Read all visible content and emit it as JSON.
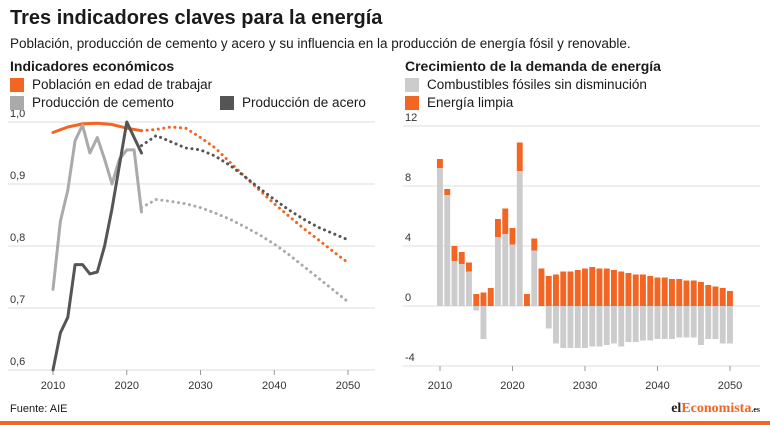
{
  "header": {
    "title": "Tres indicadores claves para la energía",
    "subtitle": "Población, producción de cemento y acero y su influencia en la producción de energía fósil y renovable."
  },
  "footer": {
    "source": "Fuente: AIE",
    "logo_prefix": "el",
    "logo_accent": "Economista",
    "logo_suffix": ".es"
  },
  "colors": {
    "population": "#f26522",
    "cement": "#aaaaaa",
    "steel": "#555555",
    "fossil": "#cccccc",
    "clean": "#f26522"
  },
  "chart_data": [
    {
      "type": "line",
      "title": "Indicadores económicos",
      "xlim": [
        2010,
        2050
      ],
      "ylim": [
        0.6,
        1.0
      ],
      "xticks": [
        2010,
        2020,
        2030,
        2040,
        2050
      ],
      "yticks": [
        0.6,
        0.7,
        0.8,
        0.9,
        1.0
      ],
      "ytick_labels": [
        "0,6",
        "0,7",
        "0,8",
        "0,9",
        "1,0"
      ],
      "grid": "horizontal",
      "legend_position": "top-left",
      "series": [
        {
          "name": "Población en edad de trabajar",
          "color": "#f26522",
          "historical": [
            [
              2010,
              0.983
            ],
            [
              2012,
              0.992
            ],
            [
              2014,
              0.997
            ],
            [
              2016,
              0.998
            ],
            [
              2018,
              0.996
            ],
            [
              2020,
              0.99
            ],
            [
              2022,
              0.986
            ]
          ],
          "projection": [
            [
              2022,
              0.986
            ],
            [
              2024,
              0.988
            ],
            [
              2026,
              0.992
            ],
            [
              2028,
              0.99
            ],
            [
              2030,
              0.975
            ],
            [
              2032,
              0.958
            ],
            [
              2034,
              0.935
            ],
            [
              2036,
              0.912
            ],
            [
              2038,
              0.89
            ],
            [
              2040,
              0.868
            ],
            [
              2042,
              0.848
            ],
            [
              2044,
              0.828
            ],
            [
              2046,
              0.81
            ],
            [
              2048,
              0.791
            ],
            [
              2050,
              0.773
            ]
          ]
        },
        {
          "name": "Producción de cemento",
          "color": "#aaaaaa",
          "historical": [
            [
              2010,
              0.73
            ],
            [
              2011,
              0.84
            ],
            [
              2012,
              0.89
            ],
            [
              2013,
              0.97
            ],
            [
              2014,
              0.995
            ],
            [
              2015,
              0.95
            ],
            [
              2016,
              0.975
            ],
            [
              2017,
              0.94
            ],
            [
              2018,
              0.9
            ],
            [
              2019,
              0.94
            ],
            [
              2020,
              0.955
            ],
            [
              2021,
              0.955
            ],
            [
              2022,
              0.855
            ]
          ],
          "projection": [
            [
              2022,
              0.862
            ],
            [
              2024,
              0.875
            ],
            [
              2026,
              0.872
            ],
            [
              2028,
              0.868
            ],
            [
              2030,
              0.862
            ],
            [
              2032,
              0.853
            ],
            [
              2034,
              0.843
            ],
            [
              2036,
              0.831
            ],
            [
              2038,
              0.818
            ],
            [
              2040,
              0.803
            ],
            [
              2042,
              0.786
            ],
            [
              2044,
              0.767
            ],
            [
              2046,
              0.748
            ],
            [
              2048,
              0.729
            ],
            [
              2050,
              0.71
            ]
          ]
        },
        {
          "name": "Producción de acero",
          "color": "#555555",
          "historical": [
            [
              2010,
              0.6
            ],
            [
              2011,
              0.66
            ],
            [
              2012,
              0.685
            ],
            [
              2013,
              0.77
            ],
            [
              2014,
              0.77
            ],
            [
              2015,
              0.755
            ],
            [
              2016,
              0.758
            ],
            [
              2017,
              0.8
            ],
            [
              2018,
              0.86
            ],
            [
              2019,
              0.93
            ],
            [
              2020,
              1.0
            ],
            [
              2021,
              0.975
            ],
            [
              2022,
              0.95
            ]
          ],
          "projection": [
            [
              2022,
              0.962
            ],
            [
              2024,
              0.978
            ],
            [
              2026,
              0.968
            ],
            [
              2028,
              0.958
            ],
            [
              2030,
              0.955
            ],
            [
              2032,
              0.945
            ],
            [
              2034,
              0.93
            ],
            [
              2036,
              0.912
            ],
            [
              2038,
              0.893
            ],
            [
              2040,
              0.875
            ],
            [
              2042,
              0.858
            ],
            [
              2044,
              0.843
            ],
            [
              2046,
              0.83
            ],
            [
              2048,
              0.82
            ],
            [
              2050,
              0.81
            ]
          ]
        }
      ]
    },
    {
      "type": "bar",
      "stacked": true,
      "title": "Crecimiento de la demanda de energía",
      "xlim": [
        2010,
        2050
      ],
      "ylim": [
        -4,
        12
      ],
      "xticks": [
        2010,
        2020,
        2030,
        2040,
        2050
      ],
      "yticks": [
        -4,
        0,
        4,
        8,
        12
      ],
      "grid": "horizontal",
      "legend_position": "top-left",
      "x": [
        2010,
        2011,
        2012,
        2013,
        2014,
        2015,
        2016,
        2017,
        2018,
        2019,
        2020,
        2021,
        2022,
        2023,
        2024,
        2025,
        2026,
        2027,
        2028,
        2029,
        2030,
        2031,
        2032,
        2033,
        2034,
        2035,
        2036,
        2037,
        2038,
        2039,
        2040,
        2041,
        2042,
        2043,
        2044,
        2045,
        2046,
        2047,
        2048,
        2049,
        2050
      ],
      "series": [
        {
          "name": "Combustibles fósiles sin disminución",
          "color": "#cccccc",
          "values": [
            9.2,
            7.4,
            3.0,
            2.8,
            2.3,
            -0.3,
            -2.2,
            0.0,
            4.6,
            4.8,
            4.1,
            9.0,
            0.0,
            3.7,
            0.0,
            -1.5,
            -2.5,
            -2.8,
            -2.8,
            -2.8,
            -2.8,
            -2.7,
            -2.7,
            -2.6,
            -2.5,
            -2.7,
            -2.4,
            -2.4,
            -2.3,
            -2.3,
            -2.2,
            -2.2,
            -2.2,
            -2.1,
            -2.1,
            -2.1,
            -2.6,
            -2.2,
            -2.2,
            -2.5,
            -2.5
          ]
        },
        {
          "name": "Energía limpia",
          "color": "#f26522",
          "values": [
            0.6,
            0.4,
            1.0,
            0.8,
            0.6,
            0.8,
            0.9,
            1.2,
            1.2,
            1.7,
            1.1,
            1.9,
            0.8,
            0.8,
            2.5,
            2.0,
            2.1,
            2.3,
            2.3,
            2.4,
            2.5,
            2.6,
            2.5,
            2.5,
            2.4,
            2.3,
            2.2,
            2.1,
            2.1,
            2.0,
            1.9,
            1.9,
            1.8,
            1.8,
            1.7,
            1.7,
            1.6,
            1.4,
            1.3,
            1.2,
            1.0
          ]
        }
      ]
    }
  ]
}
